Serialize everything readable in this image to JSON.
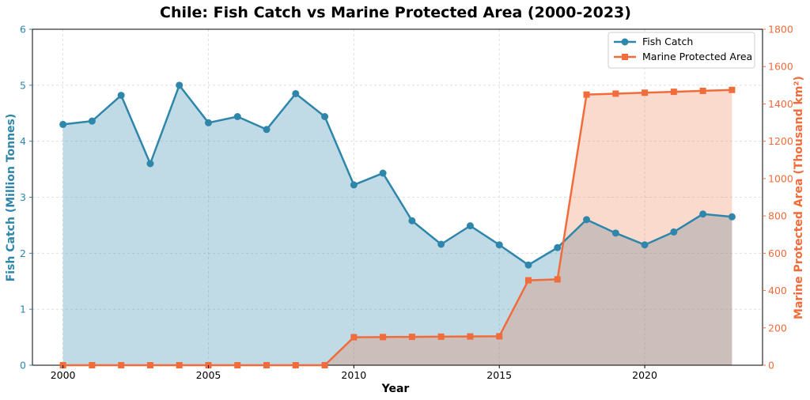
{
  "chart_data": {
    "type": "line",
    "title": "Chile: Fish Catch vs Marine Protected Area (2000-2023)",
    "xlabel": "Year",
    "ylabel_left": "Fish Catch (Million Tonnes)",
    "ylabel_right": "Marine Protected Area (Thousand km²)",
    "x": [
      2000,
      2001,
      2002,
      2003,
      2004,
      2005,
      2006,
      2007,
      2008,
      2009,
      2010,
      2011,
      2012,
      2013,
      2014,
      2015,
      2016,
      2017,
      2018,
      2019,
      2020,
      2021,
      2022,
      2023
    ],
    "xlim": [
      1998.95,
      2024.05
    ],
    "x_ticks": [
      2000,
      2005,
      2010,
      2015,
      2020
    ],
    "ylim_left": [
      0,
      6
    ],
    "y_ticks_left": [
      0,
      1,
      2,
      3,
      4,
      5,
      6
    ],
    "ylim_right": [
      0,
      1800
    ],
    "y_ticks_right": [
      0,
      200,
      400,
      600,
      800,
      1000,
      1200,
      1400,
      1600,
      1800
    ],
    "grid": true,
    "legend_position": "top-right",
    "series": [
      {
        "name": "Fish Catch",
        "axis": "left",
        "marker": "circle",
        "color": "#2e86ab",
        "fill_color": "#c2dce6",
        "values": [
          4.3,
          4.36,
          4.82,
          3.6,
          5.0,
          4.33,
          4.44,
          4.21,
          4.85,
          4.44,
          3.22,
          3.43,
          2.58,
          2.16,
          2.49,
          2.15,
          1.79,
          2.1,
          2.6,
          2.36,
          2.15,
          2.38,
          2.7,
          2.65
        ]
      },
      {
        "name": "Marine Protected Area",
        "axis": "right",
        "marker": "square",
        "color": "#f06c3b",
        "fill_color": "#fcddd1",
        "values": [
          0,
          0,
          0,
          0,
          0,
          0,
          0,
          0,
          0,
          0,
          150,
          151,
          152,
          153,
          154,
          155,
          455,
          460,
          1450,
          1455,
          1460,
          1465,
          1470,
          1475
        ]
      }
    ]
  }
}
